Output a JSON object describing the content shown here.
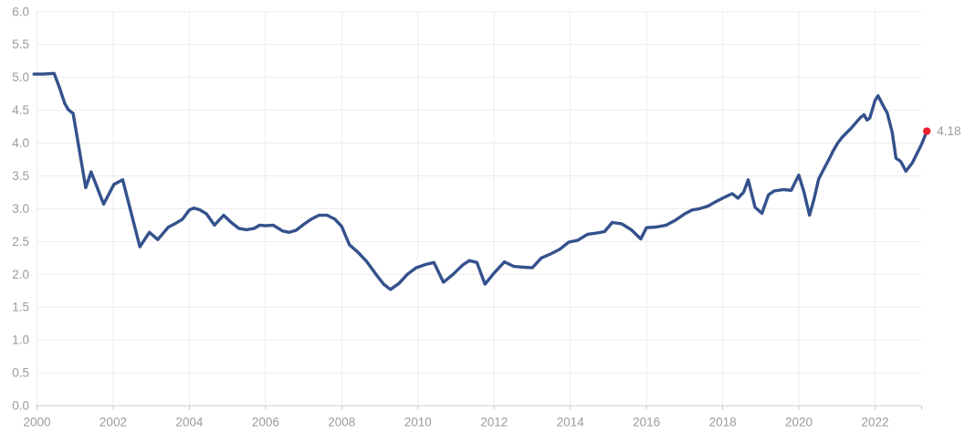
{
  "colors": {
    "line": "#34518C",
    "marker": "#EB2130",
    "tick_label": "#9B9B9B",
    "grid": "#ECECEC",
    "axis": "#CFCFCF",
    "tick": "#C6C6C6",
    "background": "#FFFFFF"
  },
  "chart_data": {
    "type": "line",
    "title": "",
    "legend": "none",
    "grid": true,
    "xlim": [
      1999.9,
      2023.55
    ],
    "ylim": [
      0,
      6
    ],
    "x_axis": {
      "ticks": [
        2000,
        2002,
        2004,
        2006,
        2008,
        2010,
        2012,
        2014,
        2016,
        2018,
        2020,
        2022
      ],
      "labels": [
        "2000",
        "2002",
        "2004",
        "2006",
        "2008",
        "2010",
        "2012",
        "2014",
        "2016",
        "2018",
        "2020",
        "2022"
      ]
    },
    "y_axis": {
      "min": 0,
      "max": 6,
      "step": 0.5,
      "labels": [
        "6.0",
        "5.5",
        "5.0",
        "4.5",
        "4.0",
        "3.5",
        "3.0",
        "2.5",
        "2.0",
        "1.5",
        "1.0",
        "0.5",
        "0.0"
      ]
    },
    "series": [
      {
        "name": "series-1",
        "color": "#34518C",
        "points": [
          [
            1999.92,
            5.05
          ],
          [
            2000.17,
            5.05
          ],
          [
            2000.45,
            5.06
          ],
          [
            2000.6,
            4.83
          ],
          [
            2000.73,
            4.6
          ],
          [
            2000.82,
            4.51
          ],
          [
            2000.95,
            4.45
          ],
          [
            2001.28,
            3.32
          ],
          [
            2001.42,
            3.56
          ],
          [
            2001.75,
            3.07
          ],
          [
            2002.02,
            3.37
          ],
          [
            2002.25,
            3.44
          ],
          [
            2002.7,
            2.42
          ],
          [
            2002.95,
            2.64
          ],
          [
            2003.17,
            2.53
          ],
          [
            2003.45,
            2.72
          ],
          [
            2003.65,
            2.78
          ],
          [
            2003.82,
            2.84
          ],
          [
            2004.0,
            2.98
          ],
          [
            2004.12,
            3.01
          ],
          [
            2004.28,
            2.98
          ],
          [
            2004.45,
            2.92
          ],
          [
            2004.66,
            2.75
          ],
          [
            2004.9,
            2.9
          ],
          [
            2005.1,
            2.79
          ],
          [
            2005.3,
            2.7
          ],
          [
            2005.5,
            2.68
          ],
          [
            2005.7,
            2.7
          ],
          [
            2005.85,
            2.75
          ],
          [
            2006.0,
            2.74
          ],
          [
            2006.2,
            2.75
          ],
          [
            2006.45,
            2.66
          ],
          [
            2006.62,
            2.64
          ],
          [
            2006.8,
            2.67
          ],
          [
            2007.0,
            2.76
          ],
          [
            2007.2,
            2.84
          ],
          [
            2007.4,
            2.9
          ],
          [
            2007.62,
            2.9
          ],
          [
            2007.82,
            2.84
          ],
          [
            2008.0,
            2.73
          ],
          [
            2008.2,
            2.45
          ],
          [
            2008.42,
            2.34
          ],
          [
            2008.65,
            2.2
          ],
          [
            2008.9,
            2.0
          ],
          [
            2009.1,
            1.85
          ],
          [
            2009.28,
            1.77
          ],
          [
            2009.5,
            1.86
          ],
          [
            2009.72,
            2.0
          ],
          [
            2009.95,
            2.1
          ],
          [
            2010.2,
            2.15
          ],
          [
            2010.42,
            2.18
          ],
          [
            2010.67,
            1.88
          ],
          [
            2010.92,
            2.0
          ],
          [
            2011.17,
            2.14
          ],
          [
            2011.35,
            2.21
          ],
          [
            2011.55,
            2.18
          ],
          [
            2011.76,
            1.85
          ],
          [
            2012.0,
            2.02
          ],
          [
            2012.27,
            2.19
          ],
          [
            2012.52,
            2.12
          ],
          [
            2012.76,
            2.11
          ],
          [
            2013.0,
            2.1
          ],
          [
            2013.24,
            2.25
          ],
          [
            2013.48,
            2.31
          ],
          [
            2013.72,
            2.38
          ],
          [
            2013.96,
            2.49
          ],
          [
            2014.2,
            2.52
          ],
          [
            2014.45,
            2.61
          ],
          [
            2014.7,
            2.63
          ],
          [
            2014.9,
            2.65
          ],
          [
            2015.1,
            2.79
          ],
          [
            2015.35,
            2.77
          ],
          [
            2015.6,
            2.68
          ],
          [
            2015.85,
            2.54
          ],
          [
            2016.0,
            2.71
          ],
          [
            2016.25,
            2.72
          ],
          [
            2016.52,
            2.75
          ],
          [
            2016.75,
            2.82
          ],
          [
            2017.0,
            2.92
          ],
          [
            2017.2,
            2.98
          ],
          [
            2017.4,
            3.0
          ],
          [
            2017.62,
            3.04
          ],
          [
            2017.8,
            3.1
          ],
          [
            2018.0,
            3.16
          ],
          [
            2018.25,
            3.23
          ],
          [
            2018.4,
            3.16
          ],
          [
            2018.55,
            3.25
          ],
          [
            2018.67,
            3.44
          ],
          [
            2018.85,
            3.02
          ],
          [
            2019.03,
            2.93
          ],
          [
            2019.2,
            3.21
          ],
          [
            2019.35,
            3.27
          ],
          [
            2019.6,
            3.29
          ],
          [
            2019.8,
            3.28
          ],
          [
            2019.9,
            3.4
          ],
          [
            2020.0,
            3.51
          ],
          [
            2020.13,
            3.26
          ],
          [
            2020.28,
            2.9
          ],
          [
            2020.4,
            3.15
          ],
          [
            2020.52,
            3.45
          ],
          [
            2020.65,
            3.6
          ],
          [
            2020.78,
            3.74
          ],
          [
            2020.9,
            3.88
          ],
          [
            2021.02,
            4.0
          ],
          [
            2021.14,
            4.09
          ],
          [
            2021.26,
            4.16
          ],
          [
            2021.38,
            4.23
          ],
          [
            2021.5,
            4.31
          ],
          [
            2021.62,
            4.39
          ],
          [
            2021.71,
            4.43
          ],
          [
            2021.79,
            4.35
          ],
          [
            2021.86,
            4.38
          ],
          [
            2022.0,
            4.65
          ],
          [
            2022.08,
            4.72
          ],
          [
            2022.22,
            4.56
          ],
          [
            2022.32,
            4.46
          ],
          [
            2022.45,
            4.16
          ],
          [
            2022.55,
            3.77
          ],
          [
            2022.67,
            3.72
          ],
          [
            2022.81,
            3.57
          ],
          [
            2022.98,
            3.7
          ],
          [
            2023.1,
            3.84
          ],
          [
            2023.22,
            3.98
          ],
          [
            2023.36,
            4.18
          ]
        ]
      }
    ],
    "end_marker": {
      "x": 2023.36,
      "value": 4.18,
      "label": "4.18",
      "color": "#EB2130"
    }
  }
}
